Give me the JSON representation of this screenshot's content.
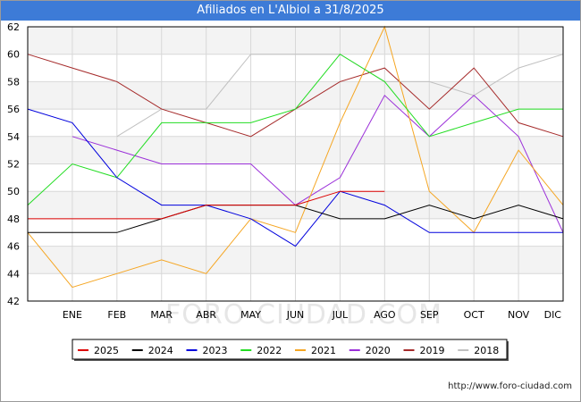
{
  "title": "Afiliados en L'Albiol a 31/8/2025",
  "watermark": "FORO-CIUDAD.COM",
  "footer": "http://www.foro-ciudad.com",
  "chart_data": {
    "type": "line",
    "title": "Afiliados en L'Albiol a 31/8/2025",
    "categories": [
      "",
      "ENE",
      "FEB",
      "MAR",
      "ABR",
      "MAY",
      "JUN",
      "JUL",
      "AGO",
      "SEP",
      "OCT",
      "NOV",
      "DIC"
    ],
    "ylim": [
      42,
      62
    ],
    "yticks": [
      42,
      44,
      46,
      48,
      50,
      52,
      54,
      56,
      58,
      60,
      62
    ],
    "grid": true,
    "legend_position": "bottom",
    "series": [
      {
        "name": "2025",
        "color": "#dd0000",
        "values": [
          48,
          48,
          48,
          48,
          49,
          49,
          49,
          50,
          50,
          null,
          null,
          null,
          null
        ]
      },
      {
        "name": "2024",
        "color": "#000000",
        "values": [
          47,
          47,
          47,
          48,
          49,
          49,
          49,
          48,
          48,
          49,
          48,
          49,
          48
        ]
      },
      {
        "name": "2023",
        "color": "#0000dd",
        "values": [
          56,
          55,
          51,
          49,
          49,
          48,
          46,
          50,
          49,
          47,
          47,
          47,
          47
        ]
      },
      {
        "name": "2022",
        "color": "#22dd22",
        "values": [
          49,
          52,
          51,
          55,
          55,
          55,
          56,
          60,
          58,
          54,
          55,
          56,
          56
        ]
      },
      {
        "name": "2021",
        "color": "#f5a623",
        "values": [
          47,
          43,
          44,
          45,
          44,
          48,
          47,
          55,
          62,
          50,
          47,
          53,
          49
        ]
      },
      {
        "name": "2020",
        "color": "#9b30d9",
        "values": [
          null,
          54,
          53,
          52,
          52,
          52,
          49,
          51,
          57,
          54,
          57,
          54,
          47
        ]
      },
      {
        "name": "2019",
        "color": "#a52a2a",
        "values": [
          60,
          59,
          58,
          56,
          55,
          54,
          56,
          58,
          59,
          56,
          59,
          55,
          54
        ]
      },
      {
        "name": "2018",
        "color": "#c0c0c0",
        "values": [
          null,
          null,
          54,
          56,
          56,
          60,
          60,
          60,
          58,
          58,
          57,
          59,
          60
        ]
      }
    ]
  }
}
